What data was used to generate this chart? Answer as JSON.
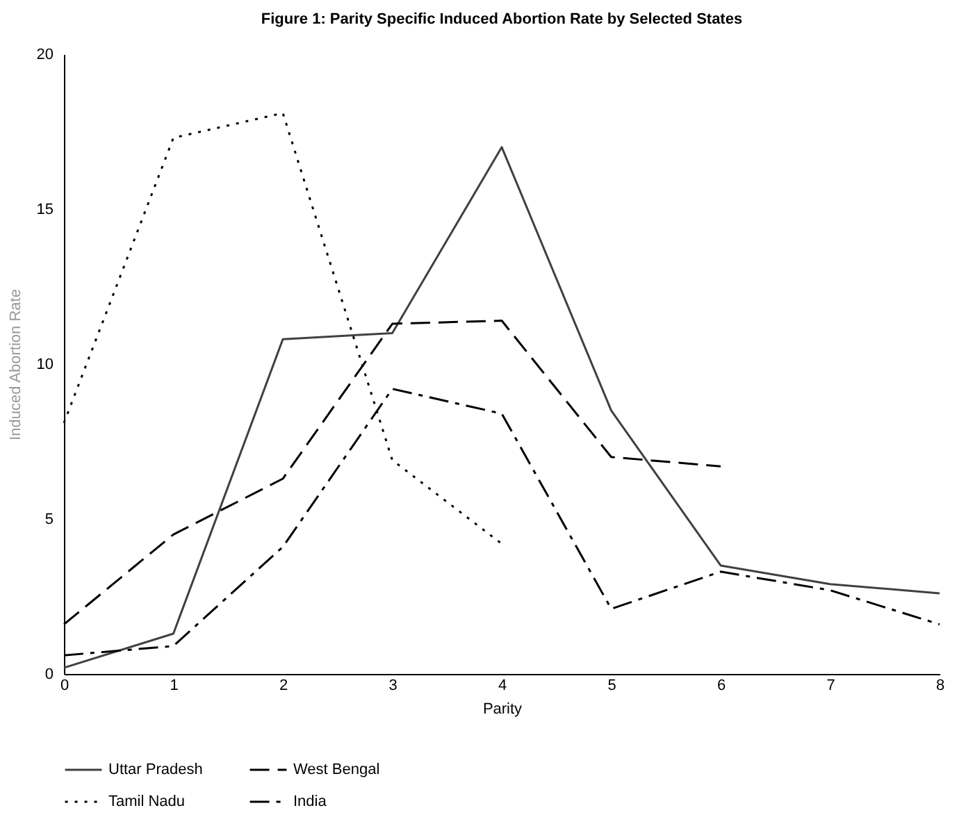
{
  "chart_data": {
    "type": "line",
    "title": "Figure 1: Parity Specific Induced Abortion Rate by Selected States",
    "xlabel": "Parity",
    "ylabel": "Induced Abortion Rate",
    "x": [
      0,
      1,
      2,
      3,
      4,
      5,
      6,
      7,
      8
    ],
    "series": [
      {
        "name": "Uttar Pradesh",
        "color": "#404040",
        "line_style": "solid",
        "values": [
          0.2,
          1.3,
          10.8,
          11.0,
          17.0,
          8.5,
          3.5,
          2.9,
          2.6
        ]
      },
      {
        "name": "West Bengal",
        "color": "#000000",
        "line_style": "dashed",
        "values": [
          1.6,
          4.5,
          6.3,
          11.3,
          11.4,
          7.0,
          6.7,
          null,
          null
        ]
      },
      {
        "name": "Tamil Nadu",
        "color": "#000000",
        "line_style": "dotted",
        "values": [
          8.1,
          17.3,
          18.1,
          6.9,
          4.2,
          null,
          null,
          null,
          null
        ]
      },
      {
        "name": "India",
        "color": "#000000",
        "line_style": "dashdot",
        "values": [
          0.6,
          0.9,
          4.1,
          9.2,
          8.4,
          2.1,
          3.3,
          2.7,
          1.6
        ]
      }
    ],
    "xlim": [
      0,
      8
    ],
    "xticks": [
      0,
      1,
      2,
      3,
      4,
      5,
      6,
      7,
      8
    ],
    "ylim": [
      0,
      20
    ],
    "yticks": [
      0,
      5,
      10,
      15,
      20
    ],
    "grid": false,
    "legend": "bottom",
    "marker": "none"
  }
}
